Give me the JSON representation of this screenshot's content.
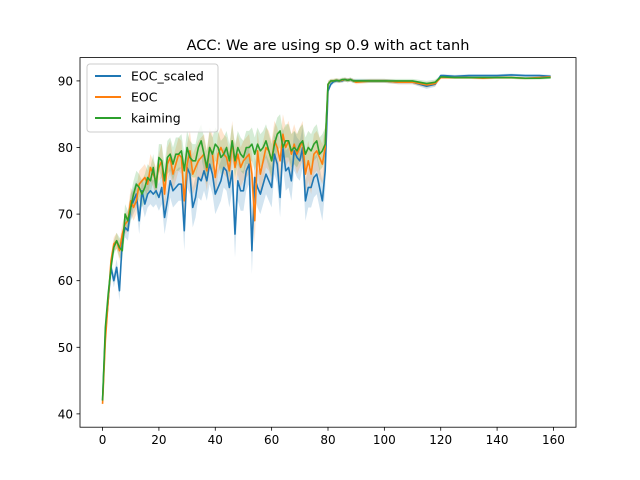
{
  "chart_data": {
    "type": "line",
    "title": "ACC: We are using sp 0.9 with act tanh",
    "xlabel": "",
    "ylabel": "",
    "xlim": [
      -8,
      168
    ],
    "ylim": [
      38,
      93.5
    ],
    "xticks": [
      0,
      20,
      40,
      60,
      80,
      100,
      120,
      140,
      160
    ],
    "yticks": [
      40,
      50,
      60,
      70,
      80,
      90
    ],
    "grid": false,
    "legend_position": "upper-left",
    "series": [
      {
        "name": "EOC_scaled",
        "color": "#1f77b4",
        "band_opacity": 0.2,
        "x": [
          0,
          1,
          2,
          3,
          4,
          5,
          6,
          7,
          8,
          9,
          10,
          11,
          12,
          13,
          14,
          15,
          16,
          17,
          18,
          19,
          20,
          21,
          22,
          23,
          24,
          25,
          26,
          27,
          28,
          29,
          30,
          31,
          32,
          33,
          34,
          35,
          36,
          37,
          38,
          39,
          40,
          41,
          42,
          43,
          44,
          45,
          46,
          47,
          48,
          49,
          50,
          51,
          52,
          53,
          54,
          55,
          56,
          57,
          58,
          59,
          60,
          61,
          62,
          63,
          64,
          65,
          66,
          67,
          68,
          69,
          70,
          71,
          72,
          73,
          74,
          75,
          76,
          77,
          78,
          79,
          80,
          81,
          82,
          83,
          84,
          85,
          86,
          87,
          88,
          89,
          90,
          95,
          100,
          105,
          110,
          115,
          118,
          120,
          121,
          125,
          130,
          135,
          140,
          145,
          150,
          155,
          159
        ],
        "values": [
          42,
          52,
          57,
          62,
          60,
          62,
          58.5,
          66,
          68,
          67.5,
          71,
          72,
          73,
          69,
          73.5,
          71.5,
          73,
          73.5,
          73,
          73.5,
          72.5,
          74,
          69.5,
          72,
          75,
          73.5,
          74,
          74.5,
          74.5,
          67.5,
          77,
          76,
          71,
          72.5,
          75.5,
          75,
          76.5,
          75,
          77.5,
          76,
          73,
          74,
          75,
          77,
          76.5,
          74,
          76.5,
          67,
          75,
          73.5,
          73.5,
          76.5,
          77.5,
          64.5,
          75.5,
          74,
          73,
          74.5,
          76,
          75,
          74,
          79,
          77.5,
          72.5,
          80,
          76.5,
          77,
          75,
          79.5,
          78.5,
          78,
          80,
          72,
          74,
          74,
          75.5,
          76,
          74,
          72,
          76.5,
          88.5,
          89.5,
          89.9,
          90,
          90,
          90,
          90.2,
          90.1,
          90.2,
          90,
          90,
          90,
          90,
          89.8,
          89.8,
          89.2,
          89.5,
          90.8,
          90.8,
          90.7,
          90.8,
          90.8,
          90.8,
          90.9,
          90.8,
          90.8,
          90.7
        ],
        "spread": [
          0.5,
          1,
          1,
          1,
          1,
          1.2,
          1.5,
          1.5,
          1.5,
          1.5,
          2,
          2,
          2,
          2,
          2,
          2,
          2,
          2,
          2,
          2,
          2,
          2.5,
          2.5,
          2.5,
          2.5,
          2.5,
          2.5,
          2.5,
          2.5,
          3,
          3,
          3,
          3,
          3,
          3,
          3,
          3,
          3,
          3,
          3,
          3,
          3,
          3,
          3,
          3,
          3,
          3,
          3.5,
          3,
          3,
          3,
          3,
          3,
          3.5,
          3,
          3,
          3,
          3,
          3,
          3,
          3,
          3,
          3,
          3,
          3,
          3,
          3,
          3,
          3,
          3,
          3,
          3,
          3,
          3,
          3,
          3,
          3,
          3,
          3,
          3,
          0.5,
          0.3,
          0.3,
          0.3,
          0.3,
          0.3,
          0.3,
          0.3,
          0.3,
          0.3,
          0.3,
          0.3,
          0.3,
          0.3,
          0.3,
          0.4,
          0.4,
          0.2,
          0.2,
          0.2,
          0.2,
          0.2,
          0.2,
          0.2,
          0.2,
          0.2,
          0.2
        ]
      },
      {
        "name": "EOC",
        "color": "#ff7f0e",
        "band_opacity": 0.2,
        "x": [
          0,
          1,
          2,
          3,
          4,
          5,
          6,
          7,
          8,
          9,
          10,
          11,
          12,
          13,
          14,
          15,
          16,
          17,
          18,
          19,
          20,
          21,
          22,
          23,
          24,
          25,
          26,
          27,
          28,
          29,
          30,
          31,
          32,
          33,
          34,
          35,
          36,
          37,
          38,
          39,
          40,
          41,
          42,
          43,
          44,
          45,
          46,
          47,
          48,
          49,
          50,
          51,
          52,
          53,
          54,
          55,
          56,
          57,
          58,
          59,
          60,
          61,
          62,
          63,
          64,
          65,
          66,
          67,
          68,
          69,
          70,
          71,
          72,
          73,
          74,
          75,
          76,
          77,
          78,
          79,
          80,
          81,
          82,
          83,
          84,
          85,
          86,
          87,
          88,
          89,
          90,
          95,
          100,
          105,
          110,
          115,
          118,
          120,
          121,
          125,
          130,
          135,
          140,
          145,
          150,
          155,
          159
        ],
        "values": [
          41.5,
          51,
          57,
          63,
          65.5,
          66,
          64.5,
          67,
          68.5,
          69,
          72,
          71,
          72,
          74.5,
          75,
          75.5,
          74.5,
          77,
          76,
          75,
          77,
          78,
          73,
          77.5,
          78.5,
          76,
          77.5,
          79,
          78.5,
          72,
          77.5,
          79.5,
          76,
          77,
          78,
          78.5,
          79,
          76.5,
          80,
          79,
          75.5,
          79,
          80,
          79,
          78.5,
          76.5,
          81,
          77,
          79,
          77,
          78,
          78.5,
          79,
          76,
          69,
          79.5,
          76,
          78,
          80,
          79.5,
          78,
          81,
          80,
          78,
          82,
          80,
          81,
          79,
          80.5,
          79,
          80,
          81,
          76,
          78,
          76,
          79,
          79.5,
          78.5,
          77.5,
          80,
          89.5,
          90,
          90,
          90.1,
          90,
          90.1,
          90.2,
          90.1,
          90.2,
          90,
          89.8,
          90,
          90,
          89.8,
          89.8,
          89.4,
          89.6,
          90.5,
          90.5,
          90.5,
          90.5,
          90.4,
          90.5,
          90.5,
          90.4,
          90.5,
          90.6
        ],
        "spread": [
          0.5,
          1,
          1,
          1,
          1,
          1.2,
          1.5,
          1.5,
          1.5,
          1.5,
          2,
          2,
          2,
          2,
          2,
          2,
          2,
          2,
          2,
          2,
          2,
          2.5,
          2.5,
          2.5,
          2.5,
          2.5,
          2.5,
          2.5,
          2.5,
          3,
          3,
          3,
          3,
          3,
          3,
          3,
          3,
          3,
          3,
          3,
          3,
          3,
          3,
          3,
          3,
          3,
          3,
          3,
          3,
          3,
          3,
          3,
          3,
          3,
          3.5,
          3,
          3,
          3,
          3,
          3,
          3,
          3,
          3,
          3,
          3,
          3,
          3,
          3,
          3,
          3,
          3,
          3,
          3,
          3,
          3,
          3,
          3,
          3,
          3,
          3,
          0.5,
          0.3,
          0.3,
          0.3,
          0.3,
          0.3,
          0.3,
          0.3,
          0.3,
          0.3,
          0.3,
          0.3,
          0.3,
          0.3,
          0.3,
          0.4,
          0.4,
          0.2,
          0.2,
          0.2,
          0.2,
          0.2,
          0.2,
          0.2,
          0.2,
          0.2,
          0.2
        ]
      },
      {
        "name": "kaiming",
        "color": "#2ca02c",
        "band_opacity": 0.2,
        "x": [
          0,
          1,
          2,
          3,
          4,
          5,
          6,
          7,
          8,
          9,
          10,
          11,
          12,
          13,
          14,
          15,
          16,
          17,
          18,
          19,
          20,
          21,
          22,
          23,
          24,
          25,
          26,
          27,
          28,
          29,
          30,
          31,
          32,
          33,
          34,
          35,
          36,
          37,
          38,
          39,
          40,
          41,
          42,
          43,
          44,
          45,
          46,
          47,
          48,
          49,
          50,
          51,
          52,
          53,
          54,
          55,
          56,
          57,
          58,
          59,
          60,
          61,
          62,
          63,
          64,
          65,
          66,
          67,
          68,
          69,
          70,
          71,
          72,
          73,
          74,
          75,
          76,
          77,
          78,
          79,
          80,
          81,
          82,
          83,
          84,
          85,
          86,
          87,
          88,
          89,
          90,
          95,
          100,
          105,
          110,
          115,
          118,
          120,
          121,
          125,
          130,
          135,
          140,
          145,
          150,
          155,
          159
        ],
        "values": [
          42,
          53,
          58,
          62,
          65,
          66,
          65,
          64.5,
          70,
          69,
          71,
          73,
          74.5,
          74,
          73,
          74,
          75.5,
          75,
          77,
          74,
          78.5,
          78,
          75,
          78.5,
          79,
          77.5,
          79,
          79,
          79.5,
          76.5,
          80,
          78.5,
          78,
          78,
          80,
          81,
          79,
          77,
          80,
          79,
          80.5,
          80,
          78.5,
          79,
          80,
          78,
          81,
          78,
          80,
          79,
          78.5,
          80,
          80,
          80.5,
          79,
          80.5,
          79.5,
          80,
          81,
          79.5,
          78,
          80.5,
          82,
          82.5,
          80,
          81,
          81,
          79.5,
          80,
          79.5,
          80.5,
          81,
          79,
          80,
          79.5,
          80.5,
          81,
          79,
          79.5,
          80.5,
          89.5,
          90,
          90,
          90.1,
          90,
          90.2,
          90.2,
          90.1,
          90.2,
          90,
          90,
          90,
          90,
          90,
          90,
          89.6,
          89.8,
          90.6,
          90.6,
          90.5,
          90.5,
          90.5,
          90.5,
          90.5,
          90.4,
          90.4,
          90.5
        ],
        "spread": [
          0.5,
          1,
          1,
          1,
          1,
          1.2,
          1.5,
          1.5,
          1.5,
          1.5,
          2,
          2,
          2,
          2,
          2,
          2,
          2,
          2,
          2,
          2,
          2,
          2.5,
          2.5,
          2.5,
          2.5,
          2.5,
          2.5,
          2.5,
          2.5,
          2.5,
          2.5,
          2.5,
          2.5,
          2.5,
          2.5,
          2.5,
          2.5,
          2.5,
          2.5,
          2.5,
          2.5,
          2.5,
          2.5,
          2.5,
          2.5,
          2.5,
          2.5,
          2.5,
          2.5,
          2.5,
          2.5,
          2.5,
          2.5,
          2.5,
          2.5,
          2.5,
          2.5,
          2.5,
          2.5,
          2.5,
          2.5,
          2.5,
          2.5,
          2.5,
          2.5,
          2.5,
          2.5,
          2.5,
          2.5,
          2.5,
          2.5,
          2.5,
          2.5,
          2.5,
          2.5,
          2.5,
          2.5,
          2.5,
          2.5,
          2.5,
          0.5,
          0.3,
          0.3,
          0.3,
          0.3,
          0.3,
          0.3,
          0.3,
          0.3,
          0.3,
          0.3,
          0.3,
          0.3,
          0.3,
          0.3,
          0.4,
          0.4,
          0.2,
          0.2,
          0.2,
          0.2,
          0.2,
          0.2,
          0.2,
          0.2,
          0.2,
          0.2
        ]
      }
    ]
  }
}
